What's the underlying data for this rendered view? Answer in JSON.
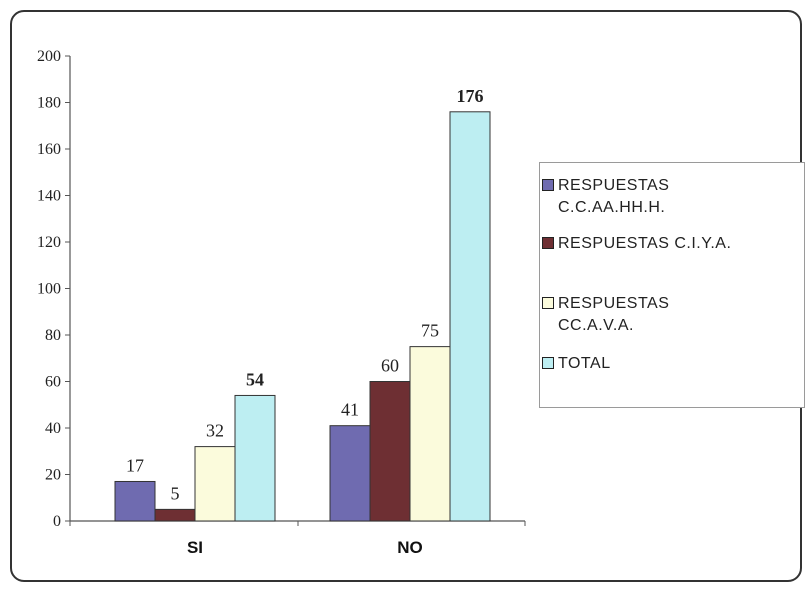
{
  "chart_data": {
    "type": "bar",
    "categories": [
      "SI",
      "NO"
    ],
    "series": [
      {
        "name": "RESPUESTAS C.C.AA.HH.H.",
        "legend_label": "RESPUESTAS\nC.C.AA.HH.H.",
        "values": [
          17,
          41
        ],
        "color": "#6F6BB0"
      },
      {
        "name": "RESPUESTAS C.I.Y.A.",
        "legend_label": "RESPUESTAS C.I.Y.A.",
        "values": [
          5,
          60
        ],
        "color": "#6E2F33"
      },
      {
        "name": "RESPUESTAS CC.A.V.A.",
        "legend_label": "RESPUESTAS\nCC.A.V.A.",
        "values": [
          32,
          75
        ],
        "color": "#FBFBDC"
      },
      {
        "name": "TOTAL",
        "legend_label": "TOTAL",
        "values": [
          54,
          176
        ],
        "color": "#BDEEF2"
      }
    ],
    "data_labels": [
      [
        "17",
        "5",
        "32",
        "54"
      ],
      [
        "41",
        "60",
        "75",
        "176"
      ]
    ],
    "yticks": [
      0,
      20,
      40,
      60,
      80,
      100,
      120,
      140,
      160,
      180,
      200
    ],
    "ylim": [
      0,
      200
    ],
    "title": "",
    "xlabel": "",
    "ylabel": "",
    "grid": false,
    "legend_position": "right"
  }
}
